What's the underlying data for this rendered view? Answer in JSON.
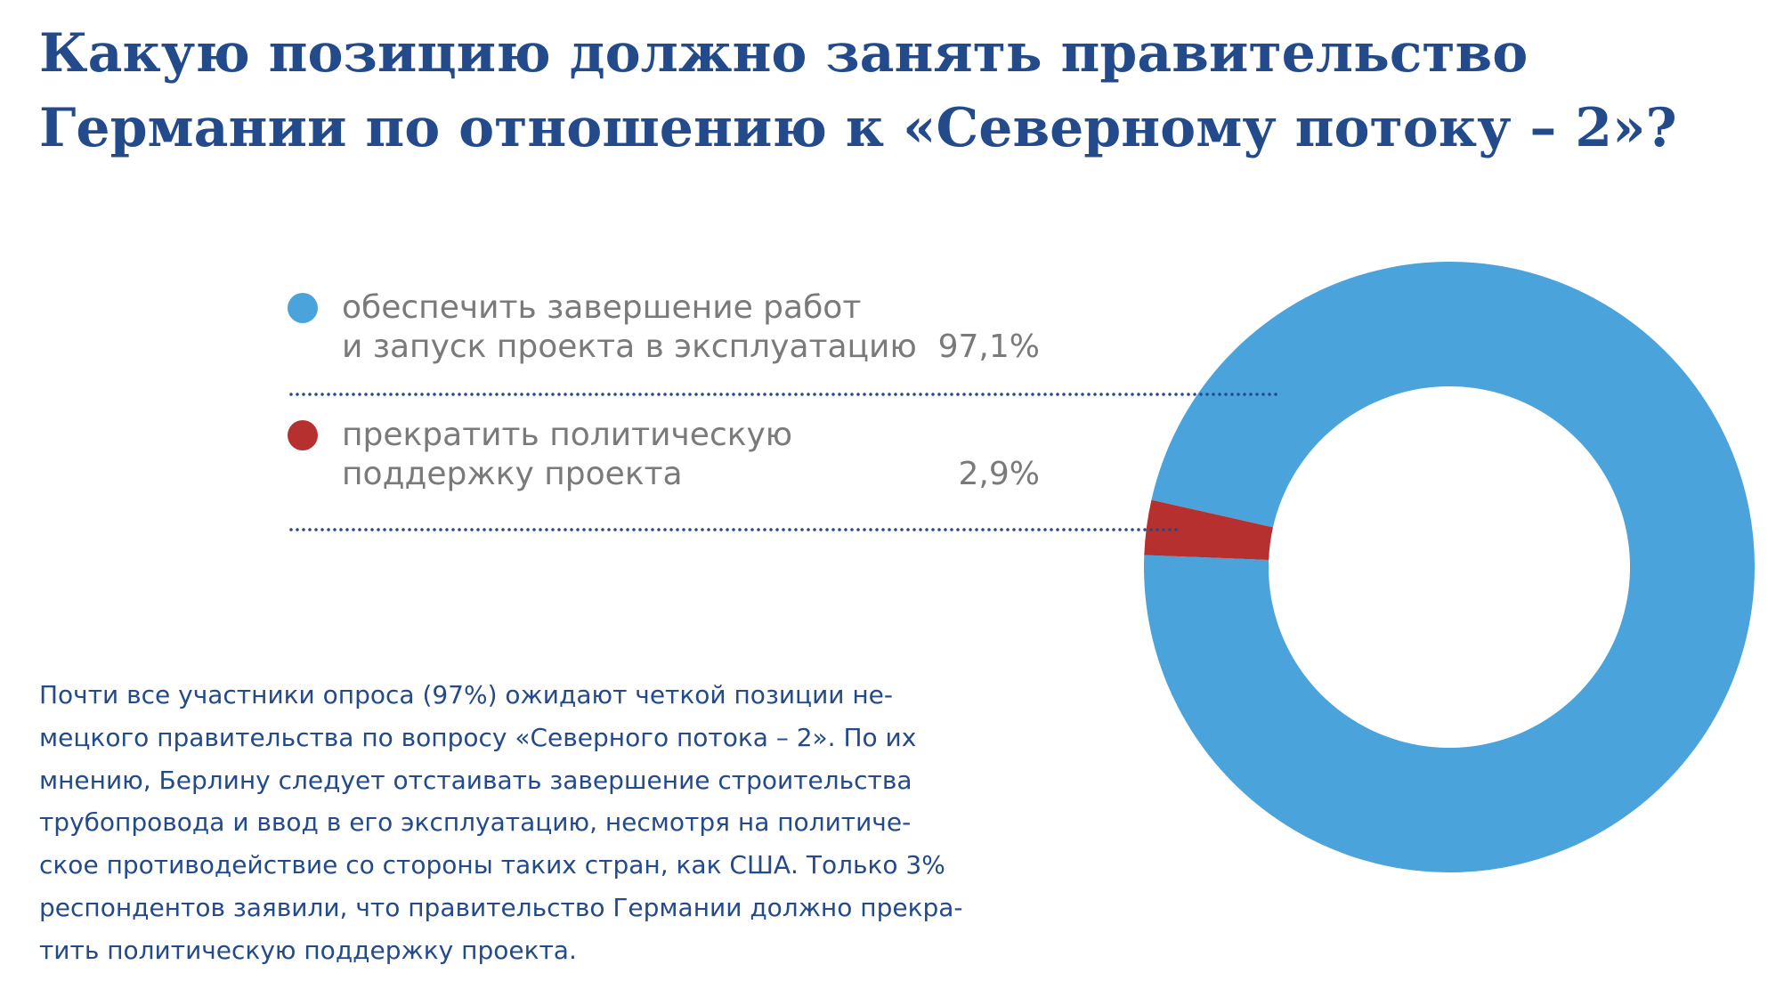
{
  "chart_data": {
    "type": "donut",
    "title": "Какую позицию должно занять правительство\nГермании по отношению к «Северному потоку – 2»?",
    "categories": [
      "обеспечить завершение работ\nи запуск проекта в эксплуатацию",
      "прекратить политическую\nподдержку проекта"
    ],
    "values": [
      97.1,
      2.9
    ],
    "value_labels": [
      "97,1%",
      "2,9%"
    ],
    "colors": [
      "#4ba3dc",
      "#b5302f"
    ]
  },
  "note": "Почти все участники опроса (97%) ожидают четкой позиции не-\nмецкого правительства по вопросу «Северного потока – 2». По их\nмнению, Берлину следует отстаивать завершение строительства\nтрубопровода и ввод в его эксплуатацию, несмотря на политиче-\nское противодействие со стороны таких стран, как США. Только 3%\nреспондентов заявили, что правительство Германии должно прекра-\nтить политическую поддержку проекта."
}
